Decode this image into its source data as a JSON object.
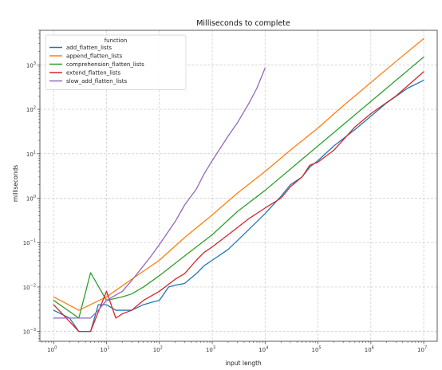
{
  "chart_data": {
    "type": "line",
    "title": "Milliseconds to complete",
    "xlabel": "input length",
    "ylabel": "milliseconds",
    "xscale": "log",
    "yscale": "log",
    "xlim": [
      0.55,
      18000000
    ],
    "ylim": [
      0.0006,
      6000
    ],
    "grid": true,
    "legend": {
      "title": "function",
      "placement": "top-left"
    },
    "x_ticks": [
      1,
      10,
      100,
      1000,
      10000,
      100000,
      1000000,
      10000000
    ],
    "x_tick_labels": [
      {
        "base": "10",
        "exp": "0"
      },
      {
        "base": "10",
        "exp": "1"
      },
      {
        "base": "10",
        "exp": "2"
      },
      {
        "base": "10",
        "exp": "3"
      },
      {
        "base": "10",
        "exp": "4"
      },
      {
        "base": "10",
        "exp": "5"
      },
      {
        "base": "10",
        "exp": "6"
      },
      {
        "base": "10",
        "exp": "7"
      }
    ],
    "y_ticks": [
      0.001,
      0.01,
      0.1,
      1,
      10,
      100,
      1000
    ],
    "y_tick_labels": [
      {
        "base": "10",
        "exp": "−3"
      },
      {
        "base": "10",
        "exp": "−2"
      },
      {
        "base": "10",
        "exp": "−1"
      },
      {
        "base": "10",
        "exp": "0"
      },
      {
        "base": "10",
        "exp": "1"
      },
      {
        "base": "10",
        "exp": "2"
      },
      {
        "base": "10",
        "exp": "3"
      }
    ],
    "series": [
      {
        "name": "add_flatten_lists",
        "color": "#1f77b4",
        "x": [
          1,
          2,
          3,
          5,
          7,
          10,
          15,
          20,
          30,
          50,
          70,
          100,
          150,
          200,
          300,
          500,
          700,
          1000,
          2000,
          5000,
          10000,
          20000,
          30000,
          50000,
          70000,
          100000,
          200000,
          500000,
          1000000,
          2000000,
          5000000,
          10000000
        ],
        "y": [
          0.003,
          0.002,
          0.001,
          0.001,
          0.004,
          0.004,
          0.003,
          0.003,
          0.003,
          0.004,
          0.0045,
          0.005,
          0.01,
          0.011,
          0.012,
          0.02,
          0.03,
          0.04,
          0.07,
          0.2,
          0.45,
          1.1,
          2.0,
          3.0,
          5.0,
          7.0,
          15,
          35,
          70,
          140,
          300,
          450
        ]
      },
      {
        "name": "append_flatten_lists",
        "color": "#ff7f0e",
        "x": [
          1,
          3,
          10,
          30,
          100,
          300,
          1000,
          3000,
          10000,
          30000,
          100000,
          300000,
          1000000,
          3000000,
          10000000
        ],
        "y": [
          0.006,
          0.003,
          0.006,
          0.015,
          0.04,
          0.13,
          0.42,
          1.3,
          4.0,
          12,
          38,
          120,
          400,
          1200,
          3900
        ]
      },
      {
        "name": "comprehension_flatten_lists",
        "color": "#2ca02c",
        "x": [
          1,
          3,
          5,
          10,
          20,
          30,
          50,
          100,
          300,
          1000,
          3000,
          10000,
          30000,
          100000,
          300000,
          1000000,
          3000000,
          10000000
        ],
        "y": [
          0.005,
          0.002,
          0.021,
          0.005,
          0.006,
          0.007,
          0.01,
          0.018,
          0.05,
          0.15,
          0.5,
          1.5,
          4.5,
          15,
          45,
          150,
          450,
          1500
        ]
      },
      {
        "name": "extend_flatten_lists",
        "color": "#d62728",
        "x": [
          1,
          3,
          5,
          10,
          15,
          20,
          30,
          50,
          100,
          200,
          300,
          500,
          700,
          1000,
          2000,
          5000,
          10000,
          20000,
          30000,
          50000,
          70000,
          100000,
          200000,
          500000,
          1000000,
          3000000,
          10000000
        ],
        "y": [
          0.004,
          0.001,
          0.001,
          0.008,
          0.002,
          0.0025,
          0.003,
          0.005,
          0.008,
          0.015,
          0.02,
          0.04,
          0.06,
          0.08,
          0.15,
          0.35,
          0.6,
          1.0,
          1.8,
          3.0,
          5.5,
          6.5,
          12,
          40,
          80,
          200,
          700
        ]
      },
      {
        "name": "slow_add_flatten_lists",
        "color": "#9467bd",
        "x": [
          1,
          2,
          3,
          5,
          7,
          10,
          20,
          30,
          50,
          70,
          100,
          200,
          300,
          500,
          700,
          1000,
          2000,
          3000,
          5000,
          7000,
          10000
        ],
        "y": [
          0.002,
          0.002,
          0.002,
          0.002,
          0.003,
          0.005,
          0.008,
          0.014,
          0.03,
          0.05,
          0.09,
          0.3,
          0.7,
          1.6,
          3.5,
          7,
          25,
          50,
          140,
          300,
          850
        ]
      }
    ]
  }
}
